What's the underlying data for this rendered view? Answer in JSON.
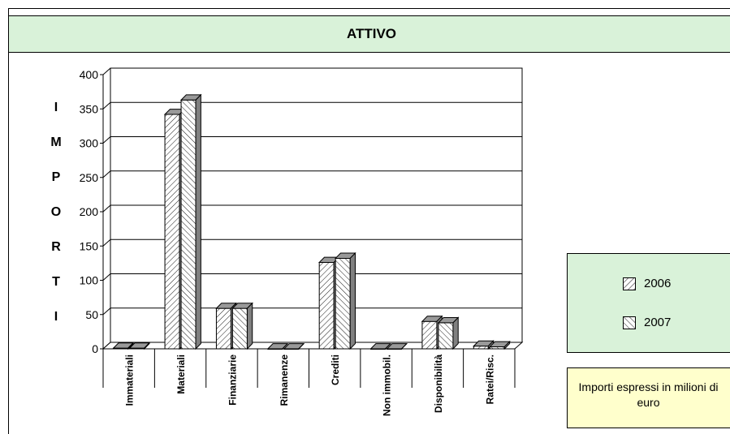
{
  "chart_data": {
    "type": "bar",
    "title": "ATTIVO",
    "ylabel": "IMPORTI",
    "ylabel_letters": [
      "I",
      "M",
      "P",
      "O",
      "R",
      "T",
      "I"
    ],
    "categories": [
      "Immateriali",
      "Materiali",
      "Finanziarie",
      "Rimanenze",
      "Crediti",
      "Non immobil.",
      "Disponibilità",
      "Ratei/Risc."
    ],
    "series": [
      {
        "name": "2006",
        "values": [
          1,
          342,
          59,
          0,
          126,
          0,
          40,
          4
        ]
      },
      {
        "name": "2007",
        "values": [
          1,
          363,
          59,
          0,
          132,
          0,
          38,
          3
        ]
      }
    ],
    "yticks": [
      "0",
      "50",
      "100",
      "150",
      "200",
      "250",
      "300",
      "350",
      "400"
    ],
    "ylim": [
      0,
      400
    ],
    "grid": true,
    "legend_position": "right",
    "note": "Importi espressi in milioni di euro"
  },
  "colors": {
    "title_bg": "#d9f2d9",
    "legend_bg": "#d9f2d9",
    "note_bg": "#ffffcc",
    "bar_fill": "#ffffff",
    "bar_side": "#808080"
  }
}
